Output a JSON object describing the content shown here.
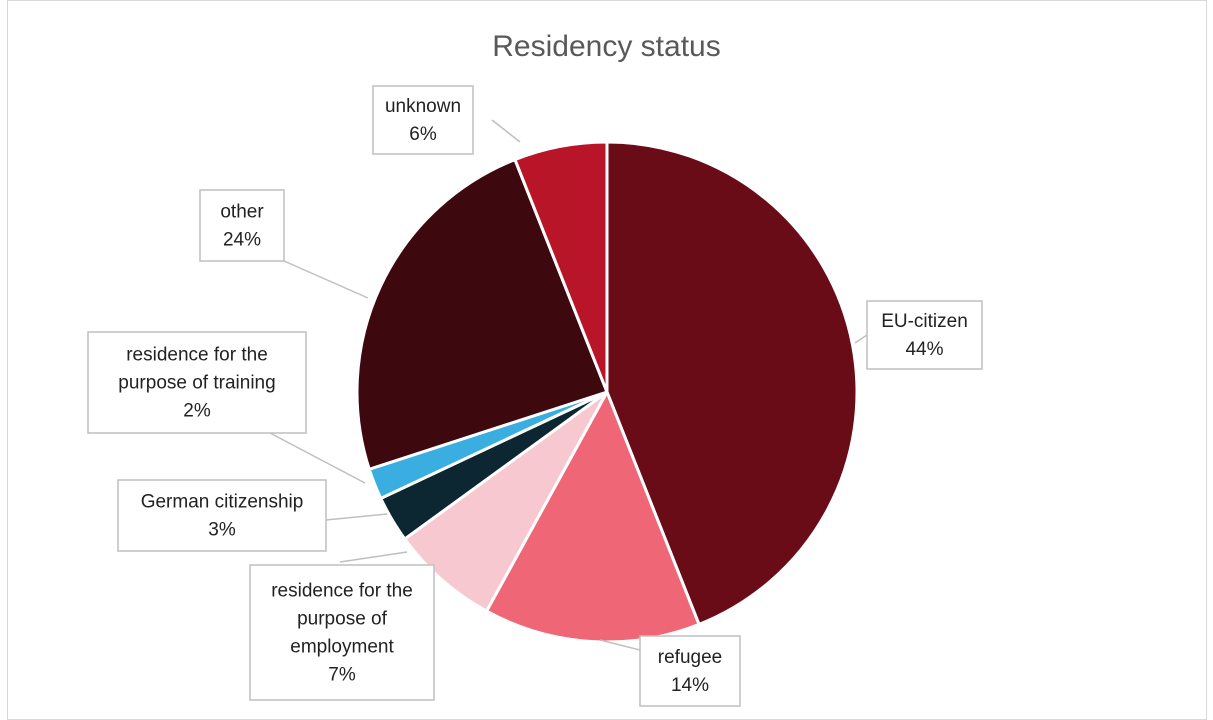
{
  "chart_data": {
    "type": "pie",
    "title": "Residency status",
    "slices": [
      {
        "label": "EU-citizen",
        "value": 44,
        "display": "44%",
        "color": "#690c17"
      },
      {
        "label": "refugee",
        "value": 14,
        "display": "14%",
        "color": "#ef6677"
      },
      {
        "label": "residence for the purpose of employment",
        "label_lines": [
          "residence for the",
          "purpose of",
          "employment"
        ],
        "value": 7,
        "display": "7%",
        "color": "#f8c8d0"
      },
      {
        "label": "German citizenship",
        "value": 3,
        "display": "3%",
        "color": "#0c2632"
      },
      {
        "label": "residence for the purpose of training",
        "label_lines": [
          "residence for the",
          "purpose of training"
        ],
        "value": 2,
        "display": "2%",
        "color": "#3aaee0"
      },
      {
        "label": "other",
        "value": 24,
        "display": "24%",
        "color": "#3e080f"
      },
      {
        "label": "unknown",
        "value": 6,
        "display": "6%",
        "color": "#b81628"
      }
    ],
    "legend": "none",
    "data_labels": "callout with leader lines"
  }
}
